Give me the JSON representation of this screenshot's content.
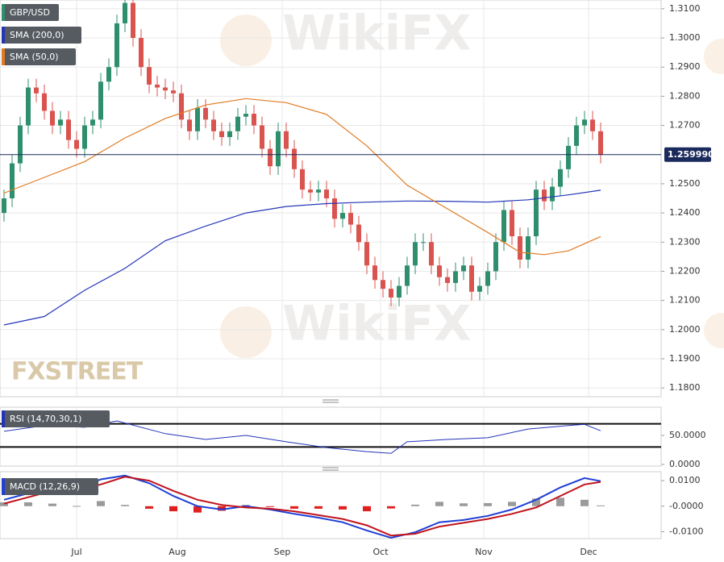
{
  "chart_data": [
    {
      "type": "candlestick",
      "symbol": "GBP/USD",
      "logo": "FXSTREET",
      "watermark": "WikiFX",
      "up_color": "#2f8f6d",
      "down_color": "#d9534f",
      "grid": true,
      "xlim": [
        -0.5,
        81.5
      ],
      "xticks": [
        {
          "value": 9,
          "label": "Jul"
        },
        {
          "value": 21.5,
          "label": "Aug"
        },
        {
          "value": 34.5,
          "label": "Sep"
        },
        {
          "value": 46.7,
          "label": "Oct"
        },
        {
          "value": 59.5,
          "label": "Nov"
        },
        {
          "value": 72.5,
          "label": "Dec"
        }
      ],
      "ylim": [
        1.177,
        1.313
      ],
      "yticks": [
        {
          "value": 1.31,
          "label": "1.3100"
        },
        {
          "value": 1.3,
          "label": "1.3000"
        },
        {
          "value": 1.29,
          "label": "1.2900"
        },
        {
          "value": 1.28,
          "label": "1.2800"
        },
        {
          "value": 1.27,
          "label": "1.2700"
        },
        {
          "value": 1.25,
          "label": "1.2500"
        },
        {
          "value": 1.24,
          "label": "1.2400"
        },
        {
          "value": 1.23,
          "label": "1.2300"
        },
        {
          "value": 1.22,
          "label": "1.2200"
        },
        {
          "value": 1.21,
          "label": "1.2100"
        },
        {
          "value": 1.2,
          "label": "1.2000"
        },
        {
          "value": 1.19,
          "label": "1.1900"
        },
        {
          "value": 1.18,
          "label": "1.1800"
        }
      ],
      "last_price": {
        "value": 1.25999,
        "label": "1.259990"
      },
      "last_price_color": "#1b2a5c",
      "open": [
        1.24,
        1.245,
        1.257,
        1.27,
        1.283,
        1.281,
        1.275,
        1.27,
        1.272,
        1.265,
        1.262,
        1.27,
        1.272,
        1.285,
        1.29,
        1.305,
        1.312,
        1.3,
        1.29,
        1.284,
        1.283,
        1.282,
        1.281,
        1.272,
        1.268,
        1.276,
        1.272,
        1.268,
        1.266,
        1.268,
        1.273,
        1.274,
        1.27,
        1.262,
        1.256,
        1.268,
        1.262,
        1.255,
        1.248,
        1.247,
        1.248,
        1.245,
        1.238,
        1.24,
        1.236,
        1.23,
        1.222,
        1.217,
        1.214,
        1.211,
        1.215,
        1.222,
        1.23,
        1.23,
        1.222,
        1.218,
        1.216,
        1.22,
        1.222,
        1.213,
        1.215,
        1.22,
        1.23,
        1.241,
        1.232,
        1.224,
        1.232,
        1.248,
        1.244,
        1.249,
        1.255,
        1.263,
        1.27,
        1.272,
        1.268
      ],
      "high": [
        1.248,
        1.26,
        1.273,
        1.286,
        1.286,
        1.284,
        1.278,
        1.275,
        1.275,
        1.268,
        1.273,
        1.275,
        1.288,
        1.293,
        1.308,
        1.315,
        1.315,
        1.303,
        1.293,
        1.287,
        1.286,
        1.285,
        1.284,
        1.275,
        1.279,
        1.279,
        1.275,
        1.271,
        1.271,
        1.276,
        1.277,
        1.277,
        1.273,
        1.265,
        1.271,
        1.271,
        1.265,
        1.258,
        1.251,
        1.251,
        1.251,
        1.248,
        1.243,
        1.243,
        1.239,
        1.233,
        1.225,
        1.22,
        1.217,
        1.218,
        1.225,
        1.233,
        1.233,
        1.233,
        1.225,
        1.221,
        1.223,
        1.225,
        1.225,
        1.218,
        1.223,
        1.233,
        1.244,
        1.244,
        1.235,
        1.235,
        1.251,
        1.251,
        1.252,
        1.258,
        1.266,
        1.273,
        1.275,
        1.275,
        1.271
      ],
      "low": [
        1.237,
        1.242,
        1.254,
        1.267,
        1.278,
        1.272,
        1.267,
        1.267,
        1.262,
        1.259,
        1.259,
        1.267,
        1.269,
        1.282,
        1.287,
        1.302,
        1.297,
        1.287,
        1.281,
        1.28,
        1.279,
        1.278,
        1.269,
        1.265,
        1.265,
        1.269,
        1.265,
        1.263,
        1.263,
        1.265,
        1.27,
        1.267,
        1.259,
        1.253,
        1.253,
        1.259,
        1.252,
        1.245,
        1.244,
        1.244,
        1.242,
        1.235,
        1.235,
        1.233,
        1.227,
        1.219,
        1.214,
        1.211,
        1.208,
        1.208,
        1.212,
        1.219,
        1.227,
        1.219,
        1.215,
        1.213,
        1.213,
        1.217,
        1.21,
        1.21,
        1.212,
        1.217,
        1.227,
        1.229,
        1.221,
        1.221,
        1.229,
        1.241,
        1.241,
        1.246,
        1.252,
        1.26,
        1.267,
        1.265,
        1.257
      ],
      "close": [
        1.245,
        1.257,
        1.27,
        1.283,
        1.281,
        1.275,
        1.27,
        1.272,
        1.265,
        1.262,
        1.27,
        1.272,
        1.285,
        1.29,
        1.305,
        1.312,
        1.3,
        1.29,
        1.284,
        1.283,
        1.282,
        1.281,
        1.272,
        1.268,
        1.276,
        1.272,
        1.268,
        1.266,
        1.268,
        1.273,
        1.274,
        1.27,
        1.262,
        1.256,
        1.268,
        1.262,
        1.255,
        1.248,
        1.247,
        1.248,
        1.245,
        1.238,
        1.24,
        1.236,
        1.23,
        1.222,
        1.217,
        1.214,
        1.211,
        1.215,
        1.222,
        1.23,
        1.23,
        1.222,
        1.218,
        1.216,
        1.22,
        1.222,
        1.213,
        1.215,
        1.22,
        1.23,
        1.241,
        1.232,
        1.224,
        1.232,
        1.248,
        1.244,
        1.249,
        1.255,
        1.263,
        1.27,
        1.272,
        1.268,
        1.26
      ],
      "series": [
        {
          "name": "SMA (200,0)",
          "color": "#2336b8",
          "x": [
            0,
            5,
            10,
            15,
            20,
            25,
            30,
            35,
            40,
            45,
            50,
            55,
            60,
            65,
            70,
            74
          ],
          "values": [
            1.2016,
            1.2045,
            1.2135,
            1.221,
            1.2305,
            1.2355,
            1.24,
            1.2422,
            1.2432,
            1.2437,
            1.2441,
            1.244,
            1.2437,
            1.2445,
            1.2462,
            1.2478
          ]
        },
        {
          "name": "SMA (50,0)",
          "color": "#e07b22",
          "x": [
            0,
            5,
            10,
            15,
            20,
            25,
            30,
            35,
            40,
            45,
            50,
            55,
            60,
            64,
            67,
            70,
            74
          ],
          "values": [
            1.2468,
            1.2522,
            1.2576,
            1.2657,
            1.2724,
            1.277,
            1.2792,
            1.2778,
            1.2738,
            1.263,
            1.2495,
            1.2414,
            1.2333,
            1.2265,
            1.2257,
            1.227,
            1.2319
          ]
        }
      ]
    },
    {
      "type": "line",
      "title": "RSI (14,70,30,1)",
      "ylim": [
        -2.8,
        98.6
      ],
      "yticks": [
        {
          "value": 50,
          "label": "50.0000"
        },
        {
          "value": 0,
          "label": "0.0000"
        }
      ],
      "levels": [
        70,
        30
      ],
      "series": [
        {
          "color": "#2233bb",
          "x": [
            0,
            5,
            10,
            14,
            20,
            25,
            30,
            35,
            40,
            45,
            48,
            50,
            55,
            60,
            65,
            70,
            72,
            74
          ],
          "values": [
            57,
            67,
            64,
            75,
            53,
            43,
            50,
            39,
            29,
            22,
            19,
            39,
            43,
            46,
            61,
            67,
            69,
            58
          ]
        }
      ]
    },
    {
      "type": "macd",
      "title": "MACD (12,26,9)",
      "ylim": [
        -0.0127,
        0.0135
      ],
      "yticks": [
        {
          "value": 0.01,
          "label": "0.0100"
        },
        {
          "value": 0,
          "label": "-0.0000"
        },
        {
          "value": -0.01,
          "label": "-0.0100"
        }
      ],
      "series": [
        {
          "color": "#1f3fd6",
          "x": [
            0,
            3,
            6,
            9,
            12,
            15,
            18,
            21,
            24,
            27,
            30,
            33,
            36,
            39,
            42,
            45,
            48,
            51,
            54,
            57,
            60,
            63,
            66,
            69,
            72,
            74
          ],
          "values": [
            0.0025,
            0.005,
            0.007,
            0.0063,
            0.0105,
            0.012,
            0.009,
            0.004,
            0,
            -0.0013,
            0,
            -0.0013,
            -0.003,
            -0.0045,
            -0.0063,
            -0.0095,
            -0.0124,
            -0.0102,
            -0.0063,
            -0.0054,
            -0.0038,
            -0.0013,
            0.0025,
            0.0073,
            0.011,
            0.0098
          ]
        },
        {
          "color": "#c0141c",
          "x": [
            0,
            3,
            6,
            9,
            12,
            15,
            18,
            21,
            24,
            27,
            30,
            33,
            36,
            39,
            42,
            45,
            48,
            51,
            54,
            57,
            60,
            63,
            66,
            69,
            72,
            74
          ],
          "values": [
            0.001,
            0.0035,
            0.006,
            0.0062,
            0.0085,
            0.0115,
            0.01,
            0.006,
            0.0025,
            0.0005,
            -0.0005,
            -0.001,
            -0.002,
            -0.0035,
            -0.005,
            -0.0075,
            -0.0115,
            -0.0108,
            -0.008,
            -0.0065,
            -0.005,
            -0.003,
            -0.0005,
            0.004,
            0.0085,
            0.0095
          ]
        }
      ],
      "histogram": {
        "color_pos": "#9a9a9a",
        "color_neg": "#e02020",
        "x": [
          0,
          3,
          6,
          9,
          12,
          15,
          18,
          21,
          24,
          27,
          30,
          33,
          36,
          39,
          42,
          45,
          48,
          51,
          54,
          57,
          60,
          63,
          66,
          69,
          72,
          74
        ],
        "values": [
          0.0015,
          0.0015,
          0.001,
          0.0001,
          0.002,
          0.0005,
          -0.001,
          -0.002,
          -0.0025,
          -0.0018,
          0.0005,
          -0.0003,
          -0.001,
          -0.001,
          -0.0013,
          -0.002,
          -0.0009,
          0.0006,
          0.0017,
          0.0011,
          0.0012,
          0.0017,
          0.003,
          0.0033,
          0.0025,
          0.0003
        ]
      }
    }
  ]
}
